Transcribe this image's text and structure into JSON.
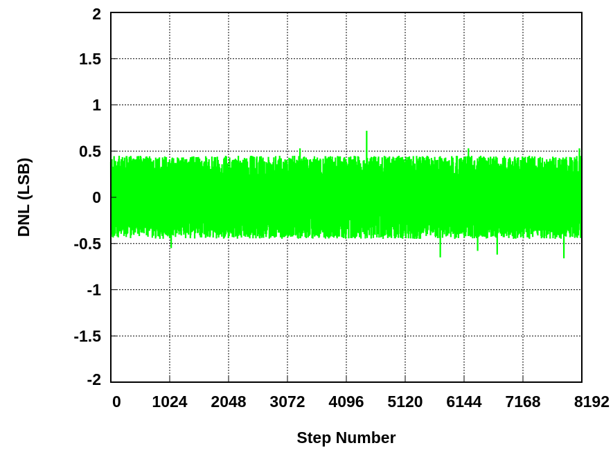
{
  "chart_data": {
    "type": "line",
    "title": "",
    "xlabel": "Step Number",
    "ylabel": "DNL  (LSB)",
    "xlim": [
      0,
      8192
    ],
    "ylim": [
      -2,
      2
    ],
    "x_ticks": [
      0,
      1024,
      2048,
      3072,
      4096,
      5120,
      6144,
      7168,
      8192
    ],
    "x_tick_labels": [
      "0",
      "1024",
      "2048",
      "3072",
      "4096",
      "5120",
      "6144",
      "7168",
      "8192"
    ],
    "y_ticks": [
      -2,
      -1.5,
      -1,
      -0.5,
      0,
      0.5,
      1,
      1.5,
      2
    ],
    "y_tick_labels": [
      "-2",
      "-1.5",
      "-1",
      "-0.5",
      "0",
      "0.5",
      "1",
      "1.5",
      "2"
    ],
    "grid": true,
    "legend": "none",
    "series": [
      {
        "color": "#00ff00",
        "description_of_shape": "dense noise band around zero for every step 0-8192, typically between about -0.45 and 0.45 LSB",
        "typical_range": [
          -0.45,
          0.45
        ],
        "notable_points": [
          {
            "x": 4450,
            "y": 0.72
          },
          {
            "x": 3290,
            "y": 0.53
          },
          {
            "x": 6220,
            "y": 0.53
          },
          {
            "x": 8150,
            "y": 0.53
          },
          {
            "x": 5730,
            "y": -0.65
          },
          {
            "x": 7880,
            "y": -0.66
          },
          {
            "x": 6720,
            "y": -0.62
          },
          {
            "x": 1050,
            "y": -0.55
          },
          {
            "x": 6380,
            "y": -0.58
          }
        ]
      }
    ]
  }
}
